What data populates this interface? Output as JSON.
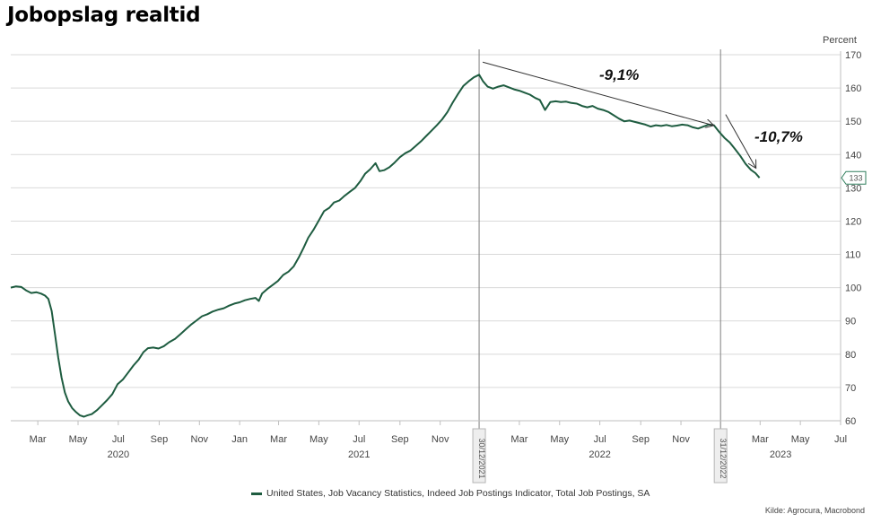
{
  "title": "Jobopslag realtid",
  "source": "Kilde: Agrocura, Macrobond",
  "colors": {
    "series": "#1e5c40",
    "grid": "#d9d9d9",
    "axis": "#bfbfbf",
    "vline": "#7f7f7f",
    "arrow": "#333333",
    "annotation_box": "#2e7d5b"
  },
  "chart_data": {
    "type": "line",
    "title": "Jobopslag realtid",
    "ylabel": "Percent",
    "ylim": [
      60,
      170
    ],
    "yticks": [
      60,
      70,
      80,
      90,
      100,
      110,
      120,
      130,
      140,
      150,
      160,
      170
    ],
    "y_axis_side": "right",
    "grid": true,
    "xlim": [
      "2020-01-20",
      "2023-07-01"
    ],
    "x_month_ticks": [
      {
        "date": "2020-03-01",
        "label": "Mar"
      },
      {
        "date": "2020-05-01",
        "label": "May"
      },
      {
        "date": "2020-07-01",
        "label": "Jul"
      },
      {
        "date": "2020-09-01",
        "label": "Sep"
      },
      {
        "date": "2020-11-01",
        "label": "Nov"
      },
      {
        "date": "2021-01-01",
        "label": "Jan"
      },
      {
        "date": "2021-03-01",
        "label": "Mar"
      },
      {
        "date": "2021-05-01",
        "label": "May"
      },
      {
        "date": "2021-07-01",
        "label": "Jul"
      },
      {
        "date": "2021-09-01",
        "label": "Sep"
      },
      {
        "date": "2021-11-01",
        "label": "Nov"
      },
      {
        "date": "2022-03-01",
        "label": "Mar"
      },
      {
        "date": "2022-05-01",
        "label": "May"
      },
      {
        "date": "2022-07-01",
        "label": "Jul"
      },
      {
        "date": "2022-09-01",
        "label": "Sep"
      },
      {
        "date": "2022-11-01",
        "label": "Nov"
      },
      {
        "date": "2023-03-01",
        "label": "Mar"
      },
      {
        "date": "2023-05-01",
        "label": "May"
      },
      {
        "date": "2023-07-01",
        "label": "Jul"
      }
    ],
    "x_year_labels": [
      {
        "date": "2020-07-01",
        "label": "2020"
      },
      {
        "date": "2021-07-01",
        "label": "2021"
      },
      {
        "date": "2022-07-01",
        "label": "2022"
      },
      {
        "date": "2023-04-01",
        "label": "2023"
      }
    ],
    "vertical_markers": [
      {
        "date": "2021-12-30",
        "label": "30/12/2021"
      },
      {
        "date": "2022-12-31",
        "label": "31/12/2022"
      }
    ],
    "annotations": [
      {
        "text": "-9,1%",
        "from": {
          "x": "2021-12-30",
          "y": 164
        },
        "to": {
          "x": "2022-12-29",
          "y": 149
        }
      },
      {
        "text": "-10,7%",
        "from": {
          "x": "2023-01-05",
          "y": 148
        },
        "to": {
          "x": "2023-02-20",
          "y": 134
        }
      }
    ],
    "last_value_label": "133",
    "series": [
      {
        "name": "United States, Job Vacancy Statistics, Indeed Job Postings Indicator, Total Job Postings, SA",
        "points": [
          [
            "2020-01-20",
            100.0
          ],
          [
            "2020-01-28",
            100.4
          ],
          [
            "2020-02-05",
            100.2
          ],
          [
            "2020-02-12",
            99.2
          ],
          [
            "2020-02-20",
            98.4
          ],
          [
            "2020-02-28",
            98.6
          ],
          [
            "2020-03-06",
            98.2
          ],
          [
            "2020-03-12",
            97.6
          ],
          [
            "2020-03-17",
            96.6
          ],
          [
            "2020-03-22",
            93.0
          ],
          [
            "2020-03-27",
            86.0
          ],
          [
            "2020-04-01",
            79.0
          ],
          [
            "2020-04-06",
            73.0
          ],
          [
            "2020-04-11",
            68.5
          ],
          [
            "2020-04-16",
            65.8
          ],
          [
            "2020-04-22",
            63.8
          ],
          [
            "2020-04-28",
            62.6
          ],
          [
            "2020-05-04",
            61.6
          ],
          [
            "2020-05-10",
            61.2
          ],
          [
            "2020-05-15",
            61.6
          ],
          [
            "2020-05-22",
            62.0
          ],
          [
            "2020-05-30",
            63.2
          ],
          [
            "2020-06-06",
            64.6
          ],
          [
            "2020-06-14",
            66.2
          ],
          [
            "2020-06-22",
            68.0
          ],
          [
            "2020-06-30",
            71.0
          ],
          [
            "2020-07-08",
            72.4
          ],
          [
            "2020-07-15",
            74.2
          ],
          [
            "2020-07-24",
            76.6
          ],
          [
            "2020-08-01",
            78.4
          ],
          [
            "2020-08-08",
            80.6
          ],
          [
            "2020-08-15",
            81.8
          ],
          [
            "2020-08-23",
            82.0
          ],
          [
            "2020-08-31",
            81.7
          ],
          [
            "2020-09-08",
            82.4
          ],
          [
            "2020-09-16",
            83.6
          ],
          [
            "2020-09-25",
            84.6
          ],
          [
            "2020-10-03",
            86.0
          ],
          [
            "2020-10-12",
            87.6
          ],
          [
            "2020-10-20",
            89.0
          ],
          [
            "2020-10-28",
            90.2
          ],
          [
            "2020-11-05",
            91.4
          ],
          [
            "2020-11-13",
            92.0
          ],
          [
            "2020-11-21",
            92.8
          ],
          [
            "2020-11-30",
            93.4
          ],
          [
            "2020-12-08",
            93.8
          ],
          [
            "2020-12-16",
            94.6
          ],
          [
            "2020-12-24",
            95.2
          ],
          [
            "2021-01-01",
            95.6
          ],
          [
            "2021-01-09",
            96.2
          ],
          [
            "2021-01-17",
            96.6
          ],
          [
            "2021-01-25",
            96.9
          ],
          [
            "2021-01-30",
            96.0
          ],
          [
            "2021-02-04",
            98.2
          ],
          [
            "2021-02-12",
            99.6
          ],
          [
            "2021-02-20",
            100.8
          ],
          [
            "2021-02-28",
            102.0
          ],
          [
            "2021-03-08",
            103.8
          ],
          [
            "2021-03-16",
            104.8
          ],
          [
            "2021-03-24",
            106.4
          ],
          [
            "2021-04-01",
            109.2
          ],
          [
            "2021-04-08",
            112.0
          ],
          [
            "2021-04-15",
            115.0
          ],
          [
            "2021-04-23",
            117.4
          ],
          [
            "2021-05-01",
            120.2
          ],
          [
            "2021-05-09",
            123.0
          ],
          [
            "2021-05-17",
            124.0
          ],
          [
            "2021-05-24",
            125.6
          ],
          [
            "2021-06-01",
            126.2
          ],
          [
            "2021-06-09",
            127.6
          ],
          [
            "2021-06-17",
            128.8
          ],
          [
            "2021-06-25",
            130.0
          ],
          [
            "2021-07-03",
            132.0
          ],
          [
            "2021-07-10",
            134.2
          ],
          [
            "2021-07-18",
            135.6
          ],
          [
            "2021-07-26",
            137.4
          ],
          [
            "2021-08-01",
            135.0
          ],
          [
            "2021-08-08",
            135.3
          ],
          [
            "2021-08-16",
            136.2
          ],
          [
            "2021-08-24",
            137.6
          ],
          [
            "2021-09-01",
            139.2
          ],
          [
            "2021-09-09",
            140.4
          ],
          [
            "2021-09-17",
            141.2
          ],
          [
            "2021-09-25",
            142.6
          ],
          [
            "2021-10-03",
            144.0
          ],
          [
            "2021-10-11",
            145.6
          ],
          [
            "2021-10-19",
            147.2
          ],
          [
            "2021-10-27",
            148.8
          ],
          [
            "2021-11-04",
            150.6
          ],
          [
            "2021-11-12",
            152.8
          ],
          [
            "2021-11-20",
            155.6
          ],
          [
            "2021-11-28",
            158.2
          ],
          [
            "2021-12-06",
            160.6
          ],
          [
            "2021-12-14",
            162.0
          ],
          [
            "2021-12-22",
            163.2
          ],
          [
            "2021-12-30",
            164.0
          ],
          [
            "2022-01-05",
            162.0
          ],
          [
            "2022-01-12",
            160.4
          ],
          [
            "2022-01-20",
            159.8
          ],
          [
            "2022-01-28",
            160.4
          ],
          [
            "2022-02-05",
            160.8
          ],
          [
            "2022-02-13",
            160.2
          ],
          [
            "2022-02-21",
            159.6
          ],
          [
            "2022-03-01",
            159.2
          ],
          [
            "2022-03-09",
            158.6
          ],
          [
            "2022-03-17",
            158.0
          ],
          [
            "2022-03-25",
            157.0
          ],
          [
            "2022-04-01",
            156.4
          ],
          [
            "2022-04-09",
            153.4
          ],
          [
            "2022-04-17",
            155.8
          ],
          [
            "2022-04-25",
            156.0
          ],
          [
            "2022-05-03",
            155.8
          ],
          [
            "2022-05-11",
            155.9
          ],
          [
            "2022-05-19",
            155.5
          ],
          [
            "2022-05-27",
            155.3
          ],
          [
            "2022-06-04",
            154.6
          ],
          [
            "2022-06-12",
            154.2
          ],
          [
            "2022-06-20",
            154.6
          ],
          [
            "2022-06-28",
            153.8
          ],
          [
            "2022-07-06",
            153.4
          ],
          [
            "2022-07-14",
            152.8
          ],
          [
            "2022-07-22",
            151.8
          ],
          [
            "2022-07-30",
            150.8
          ],
          [
            "2022-08-07",
            150.0
          ],
          [
            "2022-08-15",
            150.2
          ],
          [
            "2022-08-23",
            149.8
          ],
          [
            "2022-08-31",
            149.4
          ],
          [
            "2022-09-08",
            149.0
          ],
          [
            "2022-09-16",
            148.4
          ],
          [
            "2022-09-24",
            148.8
          ],
          [
            "2022-10-02",
            148.6
          ],
          [
            "2022-10-10",
            148.9
          ],
          [
            "2022-10-18",
            148.5
          ],
          [
            "2022-10-26",
            148.7
          ],
          [
            "2022-11-03",
            149.0
          ],
          [
            "2022-11-11",
            148.8
          ],
          [
            "2022-11-19",
            148.2
          ],
          [
            "2022-11-27",
            147.8
          ],
          [
            "2022-12-05",
            148.4
          ],
          [
            "2022-12-13",
            149.0
          ],
          [
            "2022-12-21",
            148.8
          ],
          [
            "2022-12-29",
            146.8
          ],
          [
            "2023-01-06",
            145.0
          ],
          [
            "2023-01-14",
            143.6
          ],
          [
            "2023-01-22",
            141.6
          ],
          [
            "2023-01-30",
            139.6
          ],
          [
            "2023-02-07",
            137.2
          ],
          [
            "2023-02-15",
            135.4
          ],
          [
            "2023-02-22",
            134.4
          ],
          [
            "2023-02-28",
            133.0
          ]
        ]
      }
    ]
  }
}
